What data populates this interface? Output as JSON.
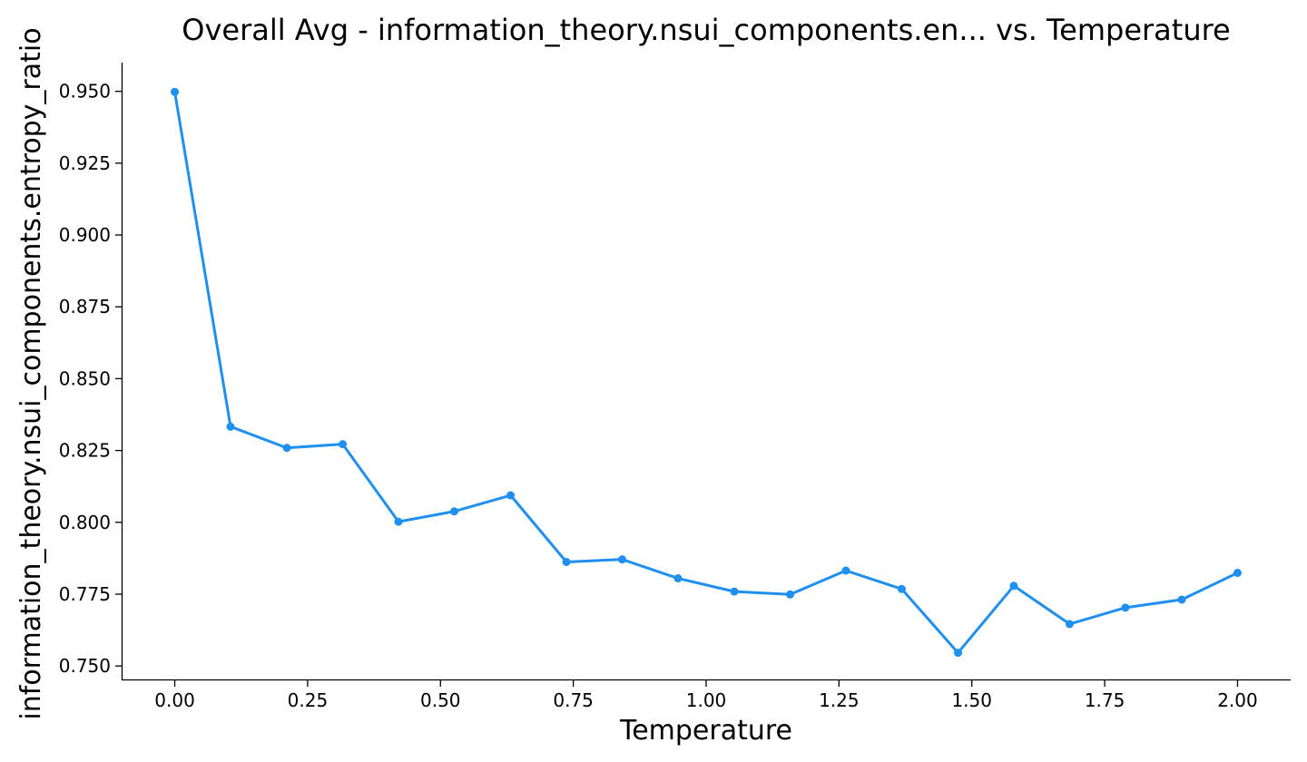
{
  "chart_data": {
    "type": "line",
    "title": "Overall Avg - information_theory.nsui_components.en... vs. Temperature",
    "xlabel": "Temperature",
    "ylabel": "information_theory.nsui_components.entropy_ratio",
    "xlim": [
      -0.1,
      2.1
    ],
    "ylim": [
      0.745,
      0.96
    ],
    "xticks": [
      0.0,
      0.25,
      0.5,
      0.75,
      1.0,
      1.25,
      1.5,
      1.75,
      2.0
    ],
    "xtick_labels": [
      "0.00",
      "0.25",
      "0.50",
      "0.75",
      "1.00",
      "1.25",
      "1.50",
      "1.75",
      "2.00"
    ],
    "yticks": [
      0.75,
      0.775,
      0.8,
      0.825,
      0.85,
      0.875,
      0.9,
      0.925,
      0.95
    ],
    "ytick_labels": [
      "0.750",
      "0.775",
      "0.800",
      "0.825",
      "0.850",
      "0.875",
      "0.900",
      "0.925",
      "0.950"
    ],
    "grid": false,
    "color": "#1f8ff0",
    "x": [
      0.0,
      0.105,
      0.211,
      0.316,
      0.421,
      0.526,
      0.632,
      0.737,
      0.842,
      0.947,
      1.053,
      1.158,
      1.263,
      1.368,
      1.474,
      1.579,
      1.684,
      1.789,
      1.895,
      2.0
    ],
    "series": [
      {
        "values": [
          0.9498,
          0.8333,
          0.8259,
          0.8272,
          0.8002,
          0.8038,
          0.8094,
          0.7862,
          0.7871,
          0.7805,
          0.7759,
          0.7749,
          0.7832,
          0.7768,
          0.7546,
          0.7779,
          0.7646,
          0.7703,
          0.7731,
          0.7824
        ]
      }
    ]
  }
}
